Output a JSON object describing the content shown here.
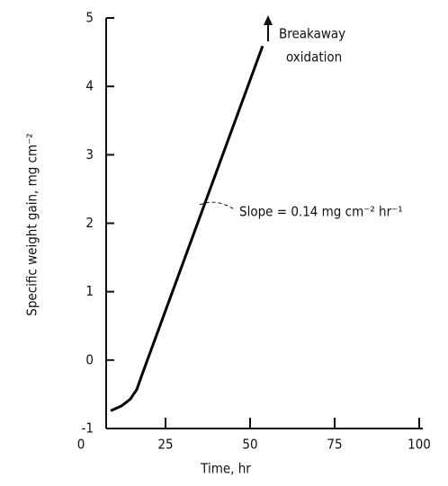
{
  "chart_data": {
    "type": "line",
    "xlabel": "Time, hr",
    "ylabel": "Specific weight gain, mg cm⁻²",
    "x": [
      8.8,
      12,
      14.6,
      16.5,
      18,
      53.7
    ],
    "values": [
      -0.74,
      -0.67,
      -0.57,
      -0.43,
      -0.22,
      4.59
    ],
    "color": "#000000",
    "xlim": [
      0,
      100
    ],
    "xticks": [
      0,
      25,
      50,
      75,
      100
    ],
    "ylim": [
      -1,
      5
    ],
    "yticks": [
      -1,
      0,
      1,
      2,
      3,
      4,
      5
    ],
    "annotations": [
      "Breakaway",
      "oxidation",
      "Slope = 0.14 mg cm⁻² hr⁻¹"
    ]
  }
}
